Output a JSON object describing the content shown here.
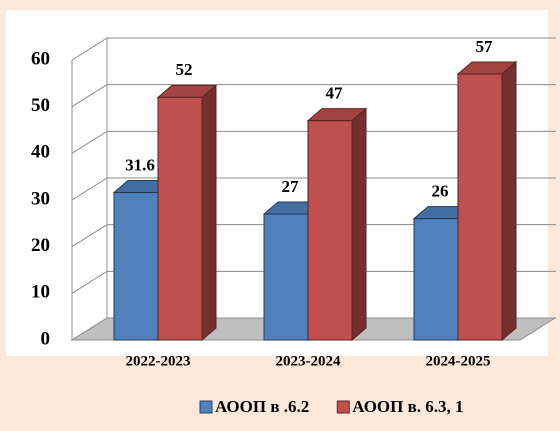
{
  "chart_data": {
    "type": "bar3d",
    "categories": [
      "2022-2023",
      "2023-2024",
      "2024-2025"
    ],
    "series": [
      {
        "name": "АООП в .6.2",
        "color": "#4f81bd",
        "values": [
          31.6,
          27,
          26
        ]
      },
      {
        "name": "АООП в. 6.3, 1",
        "color": "#c0504d",
        "values": [
          52,
          47,
          57
        ]
      }
    ],
    "ylim": [
      0,
      60
    ],
    "yticks": [
      0,
      10,
      20,
      30,
      40,
      50,
      60
    ],
    "grid": true,
    "legend": "bottom"
  }
}
